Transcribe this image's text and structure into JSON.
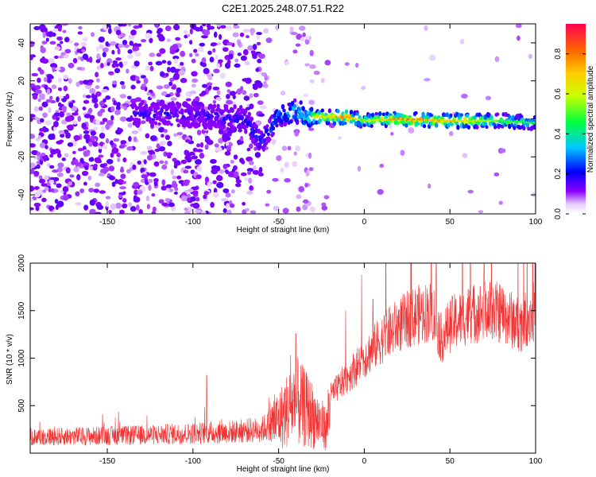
{
  "chart_data": [
    {
      "type": "heatmap",
      "title": "C2E1.2025.248.07.51.R22",
      "xlabel": "Height of straight line (km)",
      "ylabel": "Frequency (Hz)",
      "xlim": [
        -195,
        100
      ],
      "ylim": [
        -50,
        50
      ],
      "xticks": [
        -150,
        -100,
        -50,
        0,
        50,
        100
      ],
      "yticks": [
        -40,
        -20,
        0,
        20,
        40
      ],
      "colorbar": {
        "label": "Normalized spectral amplitude",
        "range": [
          0,
          0.95
        ],
        "ticks": [
          0.0,
          0.2,
          0.4,
          0.6,
          0.8
        ],
        "tick_labels": [
          "0.0",
          "0.2",
          "0.4",
          "0.6",
          "0.8"
        ]
      },
      "ridge": {
        "description_points": [
          {
            "x": -130,
            "y": 3,
            "amp": 0.2
          },
          {
            "x": -100,
            "y": 2,
            "amp": 0.2
          },
          {
            "x": -70,
            "y": 0,
            "amp": 0.25
          },
          {
            "x": -60,
            "y": -12,
            "amp": 0.3
          },
          {
            "x": -50,
            "y": 2,
            "amp": 0.35
          },
          {
            "x": -40,
            "y": 4,
            "amp": 0.5
          },
          {
            "x": -30,
            "y": 1,
            "amp": 0.7
          },
          {
            "x": -10,
            "y": 1,
            "amp": 0.85
          },
          {
            "x": 0,
            "y": -1,
            "amp": 0.6
          },
          {
            "x": 20,
            "y": 0,
            "amp": 0.85
          },
          {
            "x": 50,
            "y": -1,
            "amp": 0.8
          },
          {
            "x": 80,
            "y": -1,
            "amp": 0.55
          },
          {
            "x": 100,
            "y": -2,
            "amp": 0.5
          }
        ]
      }
    },
    {
      "type": "line",
      "xlabel": "Height of straight line (km)",
      "ylabel": "SNR (10 * v/v)",
      "xlim": [
        -195,
        100
      ],
      "ylim": [
        0,
        2000
      ],
      "xticks": [
        -150,
        -100,
        -50,
        0,
        50,
        100
      ],
      "yticks": [
        500,
        1000,
        1500,
        2000
      ],
      "series": [
        {
          "name": "SNR",
          "color": "#ee3333",
          "envelope_x": [
            -195,
            -160,
            -130,
            -100,
            -80,
            -60,
            -50,
            -40,
            -30,
            -22,
            -20,
            -10,
            0,
            10,
            20,
            30,
            40,
            45,
            50,
            60,
            70,
            80,
            90,
            100
          ],
          "envelope_y": [
            170,
            180,
            190,
            210,
            220,
            250,
            350,
            550,
            400,
            250,
            600,
            800,
            1000,
            1200,
            1350,
            1450,
            1500,
            1200,
            1350,
            1450,
            1500,
            1480,
            1350,
            1500
          ],
          "peaks": [
            {
              "x": -92,
              "y": 820
            },
            {
              "x": -40,
              "y": 1260
            },
            {
              "x": 5,
              "y": 1620
            },
            {
              "x": 42,
              "y": 2000
            },
            {
              "x": 70,
              "y": 2000
            }
          ]
        }
      ]
    }
  ]
}
